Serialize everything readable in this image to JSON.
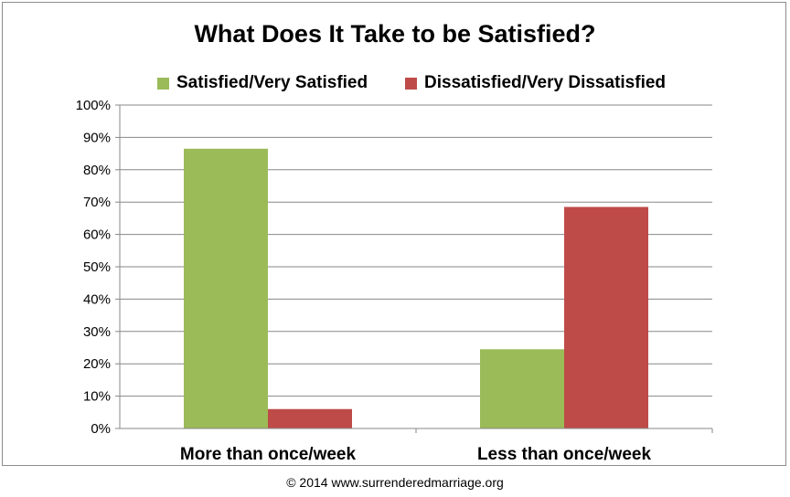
{
  "chart_data": {
    "type": "bar",
    "title": "What Does It Take to be Satisfied?",
    "categories": [
      "More than once/week",
      "Less than once/week"
    ],
    "series": [
      {
        "name": "Satisfied/Very Satisfied",
        "values": [
          86.5,
          24.5
        ],
        "color": "#9bbb59"
      },
      {
        "name": "Dissatisfied/Very Dissatisfied",
        "values": [
          6,
          68.5
        ],
        "color": "#be4b48"
      }
    ],
    "y_ticks": [
      "0%",
      "10%",
      "20%",
      "30%",
      "40%",
      "50%",
      "60%",
      "70%",
      "80%",
      "90%",
      "100%"
    ],
    "ylim": [
      0,
      100
    ],
    "grid": true,
    "legend_position": "top"
  },
  "footer": "© 2014  www.surrenderedmarriage.org"
}
